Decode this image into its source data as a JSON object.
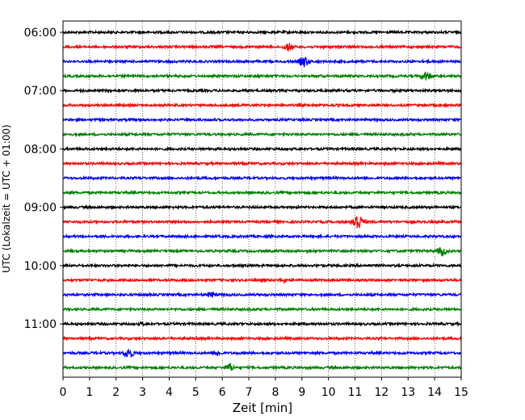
{
  "chart_data": {
    "type": "line",
    "xlabel": "Zeit  [min]",
    "ylabel": "UTC (Lokalzeit = UTC + 01:00)",
    "xlim": [
      0,
      15
    ],
    "x_ticks": [
      "0",
      "1",
      "2",
      "3",
      "4",
      "5",
      "6",
      "7",
      "8",
      "9",
      "10",
      "11",
      "12",
      "13",
      "14",
      "15"
    ],
    "y_tick_labels": [
      "06:00",
      "07:00",
      "08:00",
      "09:00",
      "10:00",
      "11:00"
    ],
    "trace_colors": [
      "#000000",
      "#ff0000",
      "#0000ff",
      "#008000"
    ],
    "traces": [
      {
        "start": "06:00",
        "events": []
      },
      {
        "start": "06:15",
        "events": [
          {
            "t": 8.5,
            "amp": 6
          }
        ]
      },
      {
        "start": "06:30",
        "events": [
          {
            "t": 9.1,
            "amp": 8
          }
        ]
      },
      {
        "start": "06:45",
        "events": [
          {
            "t": 13.7,
            "amp": 7
          }
        ]
      },
      {
        "start": "07:00",
        "events": []
      },
      {
        "start": "07:15",
        "events": []
      },
      {
        "start": "07:30",
        "events": []
      },
      {
        "start": "07:45",
        "events": []
      },
      {
        "start": "08:00",
        "events": []
      },
      {
        "start": "08:15",
        "events": []
      },
      {
        "start": "08:30",
        "events": []
      },
      {
        "start": "08:45",
        "events": []
      },
      {
        "start": "09:00",
        "events": []
      },
      {
        "start": "09:15",
        "events": [
          {
            "t": 11.1,
            "amp": 13
          }
        ]
      },
      {
        "start": "09:30",
        "events": []
      },
      {
        "start": "09:45",
        "events": [
          {
            "t": 14.3,
            "amp": 7
          }
        ]
      },
      {
        "start": "10:00",
        "events": []
      },
      {
        "start": "10:15",
        "events": [
          {
            "t": 8.3,
            "amp": 4
          }
        ]
      },
      {
        "start": "10:30",
        "events": [
          {
            "t": 5.6,
            "amp": 5
          }
        ]
      },
      {
        "start": "10:45",
        "events": []
      },
      {
        "start": "11:00",
        "events": [
          {
            "t": 3.0,
            "amp": 3
          }
        ]
      },
      {
        "start": "11:15",
        "events": []
      },
      {
        "start": "11:30",
        "events": [
          {
            "t": 2.5,
            "amp": 8
          },
          {
            "t": 5.8,
            "amp": 5
          }
        ]
      },
      {
        "start": "11:45",
        "events": [
          {
            "t": 6.3,
            "amp": 6
          }
        ]
      }
    ],
    "grid": true,
    "grid_style": "dotted-vertical"
  }
}
